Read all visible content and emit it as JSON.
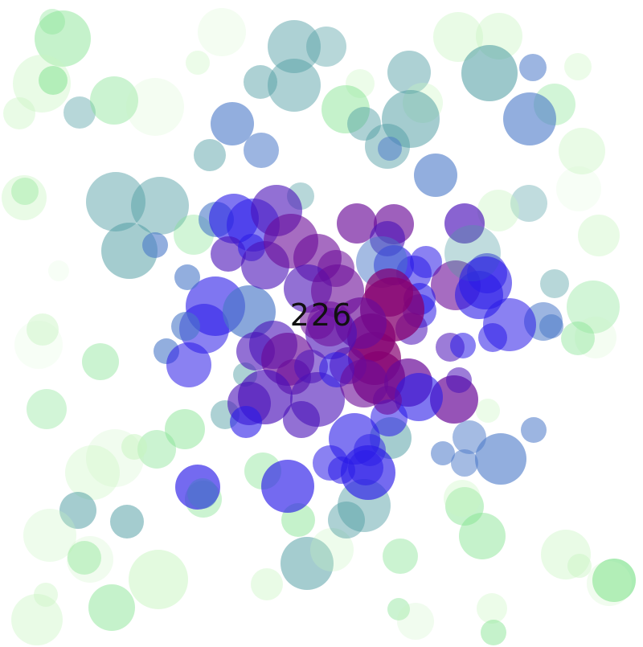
{
  "counter": {
    "value": "226"
  },
  "palette": {
    "mint": "#7ee28c",
    "pale_green": "#c8f5c0",
    "teal": "#4a9aa0",
    "steel_blue": "#4a78c8",
    "blue": "#2a1ae8",
    "indigo": "#4a10b8",
    "purple": "#6a0a98",
    "magenta_purple": "#850070"
  }
}
